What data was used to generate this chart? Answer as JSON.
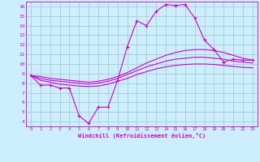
{
  "xlabel": "Windchill (Refroidissement éolien,°C)",
  "bg_color": "#cceeff",
  "line_color": "#cc00cc",
  "grid_color": "#aacccc",
  "xlim": [
    -0.5,
    23.5
  ],
  "ylim": [
    3.5,
    16.5
  ],
  "yticks": [
    4,
    5,
    6,
    7,
    8,
    9,
    10,
    11,
    12,
    13,
    14,
    15,
    16
  ],
  "xticks": [
    0,
    1,
    2,
    3,
    4,
    5,
    6,
    7,
    8,
    9,
    10,
    11,
    12,
    13,
    14,
    15,
    16,
    17,
    18,
    19,
    20,
    21,
    22,
    23
  ],
  "series_main": {
    "x": [
      0,
      1,
      2,
      3,
      4,
      5,
      6,
      7,
      8,
      9,
      10,
      11,
      12,
      13,
      14,
      15,
      16,
      17,
      18,
      19,
      20,
      21,
      22,
      23
    ],
    "y": [
      8.8,
      7.8,
      7.8,
      7.5,
      7.5,
      4.6,
      3.8,
      5.5,
      5.5,
      8.3,
      11.8,
      14.5,
      14.0,
      15.5,
      16.2,
      16.1,
      16.2,
      14.8,
      12.5,
      11.5,
      10.2,
      10.5,
      10.4,
      10.4
    ]
  },
  "series_smooth": [
    {
      "x": [
        0,
        1,
        2,
        3,
        4,
        5,
        6,
        7,
        8,
        9,
        10,
        11,
        12,
        13,
        14,
        15,
        16,
        17,
        18,
        19,
        20,
        21,
        22,
        23
      ],
      "y": [
        8.8,
        8.7,
        8.5,
        8.4,
        8.3,
        8.2,
        8.1,
        8.2,
        8.4,
        8.7,
        9.1,
        9.6,
        10.1,
        10.5,
        10.9,
        11.2,
        11.4,
        11.5,
        11.5,
        11.4,
        11.2,
        10.9,
        10.6,
        10.4
      ]
    },
    {
      "x": [
        0,
        1,
        2,
        3,
        4,
        5,
        6,
        7,
        8,
        9,
        10,
        11,
        12,
        13,
        14,
        15,
        16,
        17,
        18,
        19,
        20,
        21,
        22,
        23
      ],
      "y": [
        8.8,
        8.5,
        8.3,
        8.2,
        8.1,
        8.0,
        7.9,
        8.0,
        8.2,
        8.5,
        8.9,
        9.3,
        9.7,
        10.0,
        10.3,
        10.5,
        10.6,
        10.7,
        10.7,
        10.6,
        10.5,
        10.3,
        10.2,
        10.1
      ]
    },
    {
      "x": [
        0,
        1,
        2,
        3,
        4,
        5,
        6,
        7,
        8,
        9,
        10,
        11,
        12,
        13,
        14,
        15,
        16,
        17,
        18,
        19,
        20,
        21,
        22,
        23
      ],
      "y": [
        8.8,
        8.3,
        8.1,
        7.9,
        7.8,
        7.7,
        7.65,
        7.7,
        7.9,
        8.2,
        8.5,
        8.9,
        9.2,
        9.5,
        9.7,
        9.85,
        9.95,
        10.0,
        10.0,
        9.95,
        9.85,
        9.75,
        9.65,
        9.6
      ]
    }
  ]
}
